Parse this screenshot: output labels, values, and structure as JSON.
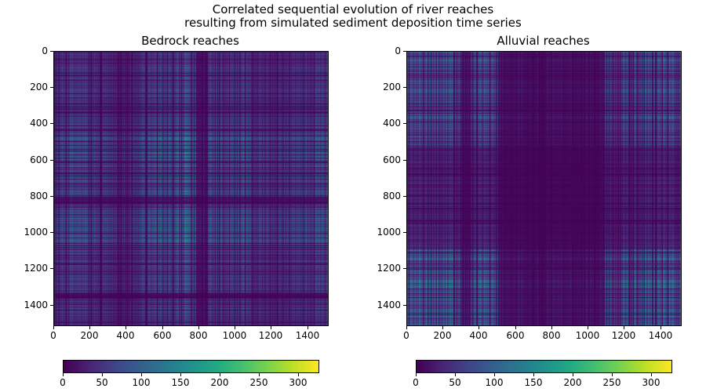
{
  "chart_data": {
    "title_lines": [
      "Correlated sequential evolution of river reaches",
      "resulting from simulated sediment deposition time series"
    ],
    "panels": [
      {
        "type": "heatmap",
        "title": "Bedrock reaches",
        "colormap": "viridis",
        "xlim": [
          0,
          1510
        ],
        "ylim": [
          1510,
          0
        ],
        "xticks": [
          0,
          200,
          400,
          600,
          800,
          1000,
          1200,
          1400
        ],
        "yticks": [
          0,
          200,
          400,
          600,
          800,
          1000,
          1200,
          1400
        ],
        "colorbar": {
          "range": [
            0,
            325
          ],
          "ticks": [
            0,
            50,
            100,
            150,
            200,
            250,
            300
          ]
        }
      },
      {
        "type": "heatmap",
        "title": "Alluvial reaches",
        "colormap": "viridis",
        "xlim": [
          0,
          1510
        ],
        "ylim": [
          1510,
          0
        ],
        "xticks": [
          0,
          200,
          400,
          600,
          800,
          1000,
          1200,
          1400
        ],
        "yticks": [
          0,
          200,
          400,
          600,
          800,
          1000,
          1200,
          1400
        ],
        "colorbar": {
          "range": [
            0,
            325
          ],
          "ticks": [
            0,
            50,
            100,
            150,
            200,
            250,
            300
          ]
        }
      }
    ]
  }
}
